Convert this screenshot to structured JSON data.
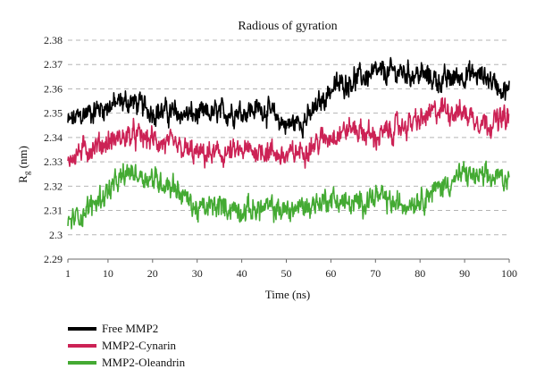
{
  "chart_data": {
    "type": "line",
    "title": "Radious of gyration",
    "xlabel": "Time (ns)",
    "ylabel": {
      "main": "R",
      "sub": "g",
      "suffix": " (nm)"
    },
    "xlim": [
      1,
      100
    ],
    "ylim": [
      2.29,
      2.38
    ],
    "xticks": [
      1,
      10,
      20,
      30,
      40,
      50,
      60,
      70,
      80,
      90,
      100
    ],
    "yticks": [
      "2.29",
      "2.3",
      "2.31",
      "2.32",
      "2.33",
      "2.34",
      "2.35",
      "2.36",
      "2.37",
      "2.38"
    ],
    "grid": "horizontal dashed",
    "legend_position": "bottom-left",
    "series": [
      {
        "name": "Free MMP2",
        "color": "#000000",
        "x": [
          1,
          5,
          10,
          15,
          20,
          25,
          30,
          35,
          40,
          45,
          50,
          55,
          60,
          65,
          70,
          75,
          80,
          85,
          90,
          95,
          100
        ],
        "y": [
          2.346,
          2.35,
          2.353,
          2.355,
          2.351,
          2.35,
          2.349,
          2.35,
          2.351,
          2.352,
          2.345,
          2.348,
          2.36,
          2.364,
          2.366,
          2.367,
          2.366,
          2.363,
          2.366,
          2.365,
          2.358
        ]
      },
      {
        "name": "MMP2-Cynarin",
        "color": "#cc2255",
        "x": [
          1,
          5,
          10,
          15,
          20,
          25,
          30,
          35,
          40,
          45,
          50,
          55,
          60,
          65,
          70,
          75,
          80,
          85,
          90,
          95,
          100
        ],
        "y": [
          2.332,
          2.335,
          2.338,
          2.341,
          2.339,
          2.336,
          2.333,
          2.333,
          2.334,
          2.335,
          2.332,
          2.336,
          2.341,
          2.344,
          2.34,
          2.344,
          2.347,
          2.352,
          2.35,
          2.346,
          2.348
        ]
      },
      {
        "name": "MMP2-Oleandrin",
        "color": "#44aa33",
        "x": [
          1,
          5,
          10,
          15,
          20,
          25,
          30,
          35,
          40,
          45,
          50,
          55,
          60,
          65,
          70,
          75,
          80,
          85,
          90,
          95,
          100
        ],
        "y": [
          2.305,
          2.31,
          2.318,
          2.326,
          2.323,
          2.32,
          2.31,
          2.312,
          2.31,
          2.311,
          2.31,
          2.312,
          2.315,
          2.312,
          2.316,
          2.312,
          2.315,
          2.32,
          2.325,
          2.323,
          2.324
        ]
      }
    ]
  }
}
